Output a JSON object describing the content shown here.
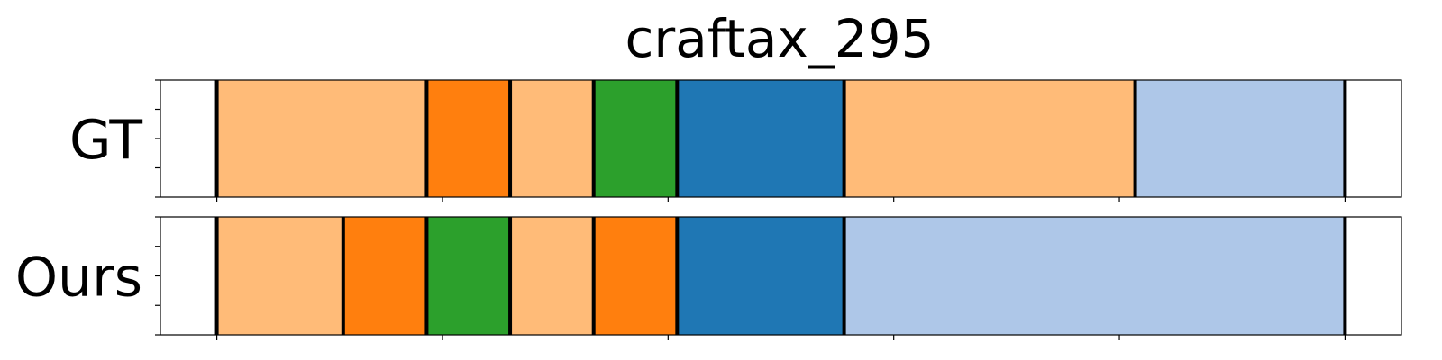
{
  "chart_data": {
    "type": "timeline",
    "title": "craftax_295",
    "xlim": [
      -25,
      525
    ],
    "rows": [
      {
        "label": "GT",
        "segments": [
          {
            "start": 0,
            "end": 93,
            "color": "#ffbb78"
          },
          {
            "start": 93,
            "end": 130,
            "color": "#ff7f0e"
          },
          {
            "start": 130,
            "end": 167,
            "color": "#ffbb78"
          },
          {
            "start": 167,
            "end": 204,
            "color": "#2ca02c"
          },
          {
            "start": 204,
            "end": 278,
            "color": "#1f77b4"
          },
          {
            "start": 278,
            "end": 407,
            "color": "#ffbb78"
          },
          {
            "start": 407,
            "end": 500,
            "color": "#aec7e8"
          }
        ]
      },
      {
        "label": "Ours",
        "segments": [
          {
            "start": 0,
            "end": 56,
            "color": "#ffbb78"
          },
          {
            "start": 56,
            "end": 93,
            "color": "#ff7f0e"
          },
          {
            "start": 93,
            "end": 130,
            "color": "#2ca02c"
          },
          {
            "start": 130,
            "end": 167,
            "color": "#ffbb78"
          },
          {
            "start": 167,
            "end": 204,
            "color": "#ff7f0e"
          },
          {
            "start": 204,
            "end": 278,
            "color": "#1f77b4"
          },
          {
            "start": 278,
            "end": 500,
            "color": "#aec7e8"
          }
        ]
      }
    ],
    "x_ticks": [
      0,
      100,
      200,
      300,
      400,
      500
    ],
    "y_ticks_per_row": 5
  }
}
